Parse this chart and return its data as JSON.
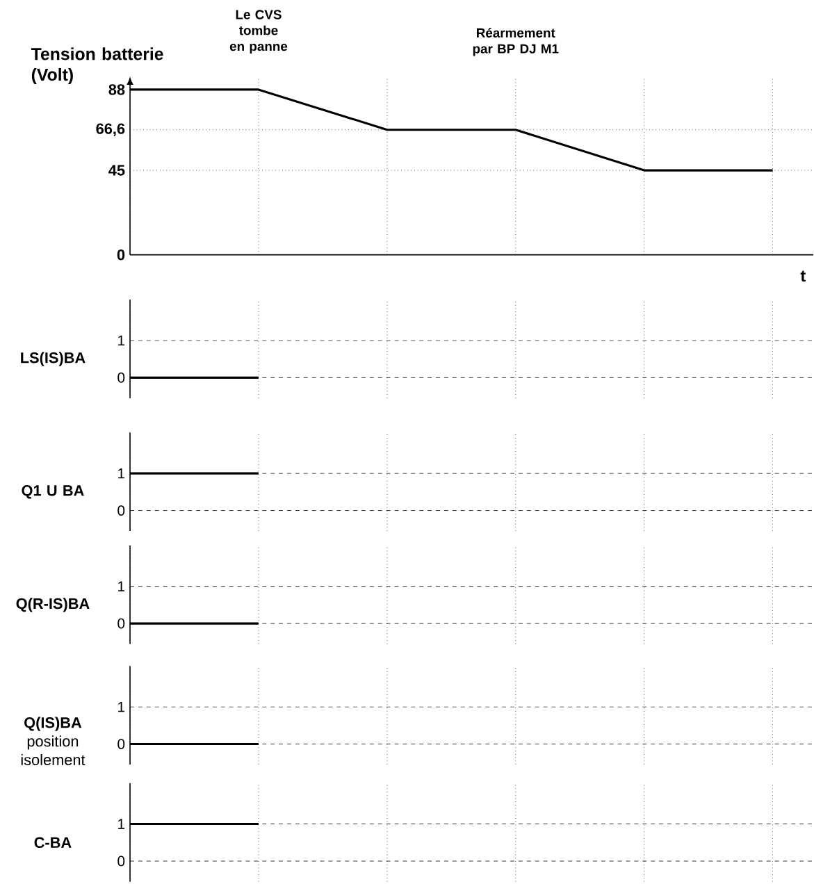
{
  "chart_data": [
    {
      "type": "line",
      "ylabel": "Tension batterie (Volt)",
      "xlabel": "t",
      "categories": [
        null,
        null,
        null,
        null,
        null,
        null
      ],
      "values": [
        88,
        88,
        66.6,
        66.6,
        45,
        45
      ],
      "color": "#000000",
      "ylim": [
        0,
        95
      ],
      "yticks": [
        0,
        45,
        {
          "value": 66.6,
          "label": "66,6"
        },
        88
      ],
      "grid": "x",
      "tick_labels": "y",
      "ref_lines": [
        {
          "axis": "y",
          "value": 66.6,
          "line_style": "dotted"
        },
        {
          "axis": "y",
          "value": 45,
          "line_style": "dotted"
        }
      ],
      "annotations": [
        "Le CVS tombe en panne",
        "Réarmement par  BP DJ M1"
      ]
    },
    {
      "type": "line",
      "ylabel": "LS(IS)BA",
      "categories": [
        null,
        null,
        null,
        null,
        null,
        null
      ],
      "values": [
        0,
        0,
        null,
        null,
        null,
        null
      ],
      "color": "#000000",
      "ylim": [
        -0.55,
        2.1
      ],
      "yticks": [
        0,
        1
      ],
      "grid": "x",
      "tick_labels": "y",
      "ref_lines": [
        {
          "axis": "y",
          "value": 0,
          "line_style": "dashed"
        },
        {
          "axis": "y",
          "value": 1,
          "line_style": "dashed"
        }
      ]
    },
    {
      "type": "line",
      "ylabel": "Q1 U BA",
      "categories": [
        null,
        null,
        null,
        null,
        null,
        null
      ],
      "values": [
        1,
        1,
        null,
        null,
        null,
        null
      ],
      "color": "#000000",
      "ylim": [
        -0.55,
        2.1
      ],
      "yticks": [
        0,
        1
      ],
      "grid": "x",
      "tick_labels": "y",
      "ref_lines": [
        {
          "axis": "y",
          "value": 0,
          "line_style": "dashed"
        },
        {
          "axis": "y",
          "value": 1,
          "line_style": "dashed"
        }
      ]
    },
    {
      "type": "line",
      "ylabel": "Q(R-IS)BA",
      "categories": [
        null,
        null,
        null,
        null,
        null,
        null
      ],
      "values": [
        0,
        0,
        null,
        null,
        null,
        null
      ],
      "color": "#000000",
      "ylim": [
        -0.55,
        2.1
      ],
      "yticks": [
        0,
        1
      ],
      "grid": "x",
      "tick_labels": "y",
      "ref_lines": [
        {
          "axis": "y",
          "value": 0,
          "line_style": "dashed"
        },
        {
          "axis": "y",
          "value": 1,
          "line_style": "dashed"
        }
      ]
    },
    {
      "type": "line",
      "ylabel": "Q(IS)BA",
      "subtitle": "position isolement",
      "categories": [
        null,
        null,
        null,
        null,
        null,
        null
      ],
      "values": [
        0,
        0,
        null,
        null,
        null,
        null
      ],
      "color": "#000000",
      "ylim": [
        -0.55,
        2.1
      ],
      "yticks": [
        0,
        1
      ],
      "grid": "x",
      "tick_labels": "y",
      "ref_lines": [
        {
          "axis": "y",
          "value": 0,
          "line_style": "dashed"
        },
        {
          "axis": "y",
          "value": 1,
          "line_style": "dashed"
        }
      ]
    },
    {
      "type": "line",
      "ylabel": "C-BA",
      "categories": [
        null,
        null,
        null,
        null,
        null,
        null
      ],
      "values": [
        1,
        1,
        null,
        null,
        null,
        null
      ],
      "color": "#000000",
      "ylim": [
        -0.55,
        2.1
      ],
      "yticks": [
        0,
        1
      ],
      "grid": "x",
      "tick_labels": "y",
      "ref_lines": [
        {
          "axis": "y",
          "value": 0,
          "line_style": "dashed"
        },
        {
          "axis": "y",
          "value": 1,
          "line_style": "dashed"
        }
      ]
    }
  ]
}
